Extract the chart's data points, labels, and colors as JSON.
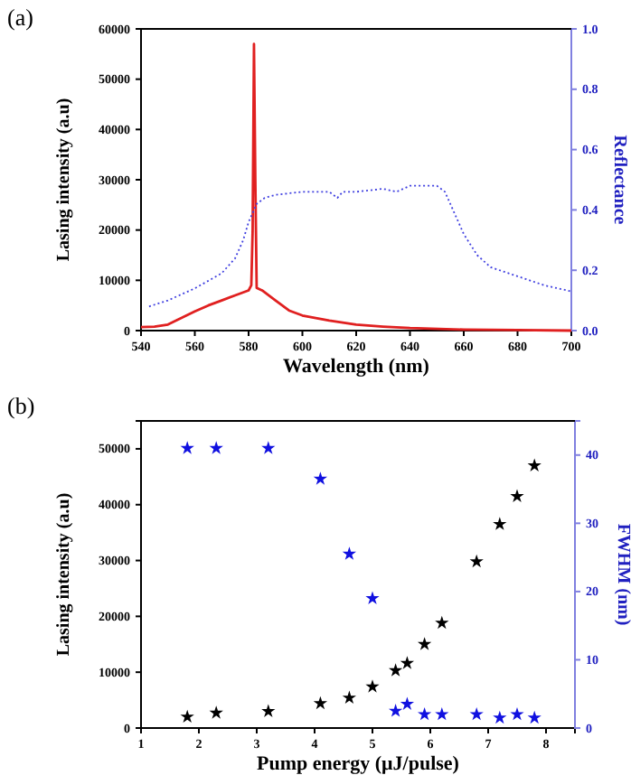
{
  "chart_data": [
    {
      "type": "line",
      "title": "(a)",
      "xlabel": "Wavelength (nm)",
      "ylabel": "Lasing intensity (a.u)",
      "y2label": "Reflectance",
      "xlim": [
        540,
        700
      ],
      "xticks": [
        540,
        560,
        580,
        600,
        620,
        640,
        660,
        680,
        700
      ],
      "ylim": [
        0,
        60000
      ],
      "yticks": [
        0,
        10000,
        20000,
        30000,
        40000,
        50000,
        60000
      ],
      "y2lim": [
        0,
        1.0
      ],
      "y2ticks": [
        {
          "value": 0,
          "label": "0.0"
        },
        0.2,
        0.4,
        0.6,
        0.8,
        {
          "value": 1,
          "label": "1.0"
        }
      ],
      "marker": "none",
      "series": [
        {
          "color": "#e02020",
          "x": [
            540,
            545,
            550,
            555,
            560,
            565,
            570,
            575,
            580,
            581,
            581.5,
            582,
            582.5,
            583,
            585,
            590,
            595,
            600,
            610,
            620,
            630,
            640,
            660,
            680,
            700
          ],
          "values": [
            700,
            800,
            1200,
            2500,
            3800,
            5000,
            6000,
            7000,
            8000,
            9000,
            20000,
            57000,
            30000,
            8500,
            8000,
            6000,
            4000,
            3000,
            2000,
            1200,
            800,
            500,
            200,
            100,
            0
          ]
        },
        {
          "color": "#4040e0",
          "axis": "y2",
          "line_style": "dotted",
          "x": [
            543,
            550,
            560,
            570,
            575,
            578,
            580,
            583,
            586,
            590,
            600,
            610,
            613,
            615,
            620,
            630,
            635,
            640,
            650,
            653,
            656,
            660,
            665,
            670,
            680,
            690,
            695,
            700
          ],
          "values": [
            0.08,
            0.1,
            0.14,
            0.19,
            0.24,
            0.3,
            0.36,
            0.42,
            0.44,
            0.45,
            0.46,
            0.46,
            0.44,
            0.46,
            0.46,
            0.47,
            0.46,
            0.48,
            0.48,
            0.46,
            0.4,
            0.32,
            0.25,
            0.21,
            0.18,
            0.15,
            0.14,
            0.13
          ]
        }
      ]
    },
    {
      "type": "scatter",
      "title": "(b)",
      "xlabel": "Pump energy (μJ/pulse)",
      "ylabel": "Lasing intensity (a.u)",
      "y2label": "FWHM (nm)",
      "xlim": [
        1,
        8.5
      ],
      "xticks": [
        1,
        2,
        3,
        4,
        5,
        6,
        7,
        8
      ],
      "ylim": [
        0,
        55000
      ],
      "yticks": [
        0,
        10000,
        20000,
        30000,
        40000,
        50000
      ],
      "y2lim": [
        0,
        45
      ],
      "y2ticks": [
        0,
        10,
        20,
        30,
        40
      ],
      "marker": "star",
      "series": [
        {
          "color": "#000000",
          "x": [
            1.8,
            2.3,
            3.2,
            4.1,
            4.6,
            5.0,
            5.4,
            5.6,
            5.9,
            6.2,
            6.8,
            7.2,
            7.5,
            7.8
          ],
          "values": [
            2000,
            2700,
            3000,
            4400,
            5400,
            7400,
            10300,
            11600,
            15000,
            18800,
            29800,
            36500,
            41500,
            47000
          ]
        },
        {
          "color": "#1010e0",
          "axis": "y2",
          "x": [
            1.8,
            2.3,
            3.2,
            4.1,
            4.6,
            5.0,
            5.4,
            5.6,
            5.9,
            6.2,
            6.8,
            7.2,
            7.5,
            7.8
          ],
          "values": [
            41,
            41,
            41,
            36.5,
            25.5,
            19,
            2.5,
            3.5,
            2,
            2,
            2,
            1.5,
            2,
            1.5
          ]
        }
      ]
    }
  ]
}
